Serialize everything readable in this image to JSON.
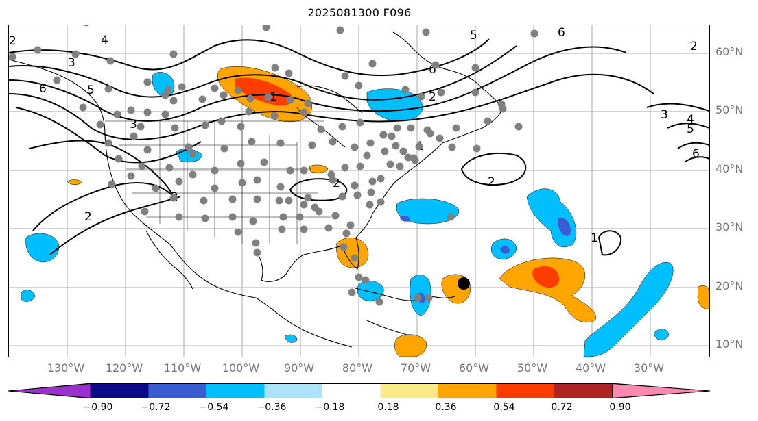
{
  "title": "2025081300 F096",
  "lat_labels": [
    "60°N",
    "50°N",
    "40°N",
    "30°N",
    "20°N",
    "10°N"
  ],
  "lon_labels": [
    "130°W",
    "120°W",
    "110°W",
    "100°W",
    "90°W",
    "80°W",
    "70°W",
    "60°W",
    "50°W",
    "40°W",
    "30°W"
  ],
  "colorbar": {
    "ticks": [
      "−0.90",
      "−0.72",
      "−0.54",
      "−0.36",
      "−0.18",
      "0.18",
      "0.36",
      "0.54",
      "0.72",
      "0.90"
    ],
    "colors": [
      "#9b30d0",
      "#0a0a8c",
      "#3a5bd4",
      "#00bfff",
      "#aee2fc",
      "#ffffff",
      "#fce98a",
      "#ffa500",
      "#ff3c00",
      "#b22222",
      "#ff88b0"
    ]
  },
  "contour_labels": [
    "2",
    "4",
    "3",
    "6",
    "5",
    "3",
    "2",
    "2",
    "5",
    "6",
    "2",
    "6",
    "2",
    "3",
    "4",
    "5",
    "6",
    "2",
    "2",
    "1",
    "1",
    "1"
  ],
  "marker": "storm-center"
}
